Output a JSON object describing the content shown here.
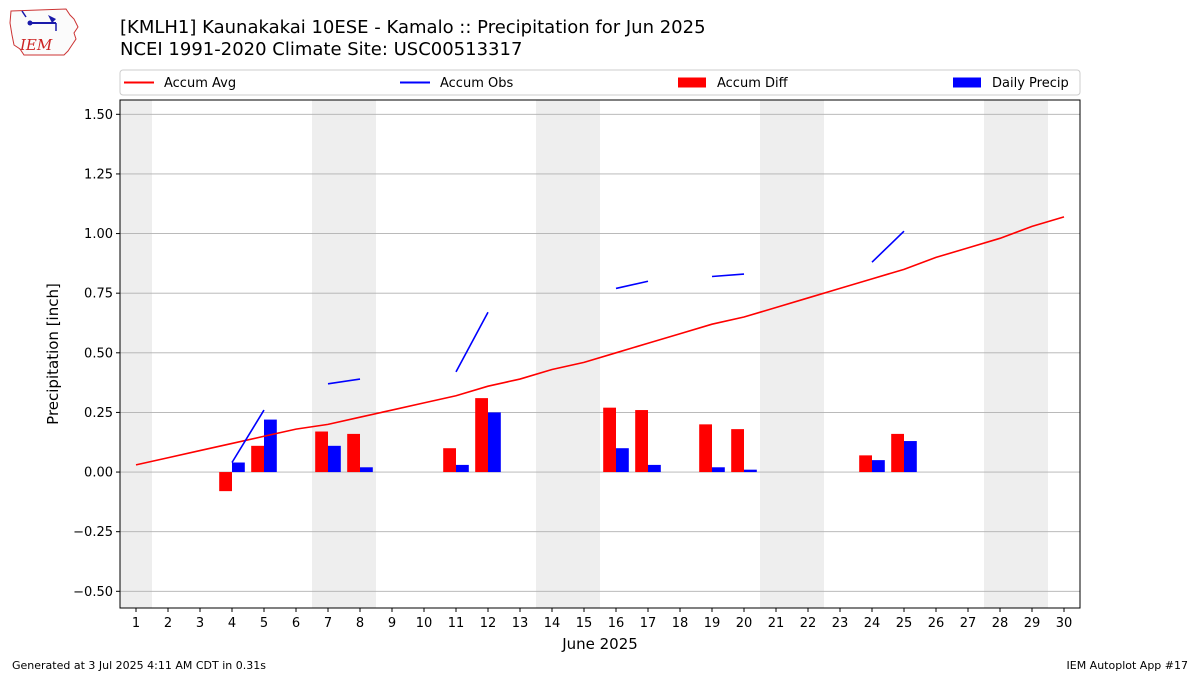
{
  "title": {
    "line1": "[KMLH1] Kaunakakai 10ESE - Kamalo :: Precipitation for Jun 2025",
    "line2": "NCEI 1991-2020 Climate Site: USC00513317"
  },
  "logo": {
    "text": "IEM",
    "color": "#cc2222"
  },
  "footer": {
    "left": "Generated at 3 Jul 2025 4:11 AM CDT in 0.31s",
    "right": "IEM Autoplot App #17"
  },
  "chart_data": {
    "type": "bar",
    "xlabel": "June 2025",
    "ylabel": "Precipitation [inch]",
    "xlim": [
      0.5,
      30.5
    ],
    "ylim": [
      -0.57,
      1.56
    ],
    "yticks": [
      -0.5,
      -0.25,
      0.0,
      0.25,
      0.5,
      0.75,
      1.0,
      1.25,
      1.5
    ],
    "ytick_labels": [
      "−0.50",
      "−0.25",
      "0.00",
      "0.25",
      "0.50",
      "0.75",
      "1.00",
      "1.25",
      "1.50"
    ],
    "days": [
      1,
      2,
      3,
      4,
      5,
      6,
      7,
      8,
      9,
      10,
      11,
      12,
      13,
      14,
      15,
      16,
      17,
      18,
      19,
      20,
      21,
      22,
      23,
      24,
      25,
      26,
      27,
      28,
      29,
      30
    ],
    "weekend_days": [
      1,
      7,
      8,
      14,
      15,
      21,
      22,
      28,
      29
    ],
    "grid": "horizontal",
    "legend_position": "top",
    "legend": [
      {
        "label": "Accum Avg",
        "kind": "line",
        "color": "#ff0000"
      },
      {
        "label": "Accum Obs",
        "kind": "line",
        "color": "#0000ff"
      },
      {
        "label": "Accum Diff",
        "kind": "bar",
        "color": "#ff0000"
      },
      {
        "label": "Daily Precip",
        "kind": "bar",
        "color": "#0000ff"
      }
    ],
    "accum_avg": [
      0.03,
      0.06,
      0.09,
      0.12,
      0.15,
      0.18,
      0.2,
      0.23,
      0.26,
      0.29,
      0.32,
      0.36,
      0.39,
      0.43,
      0.46,
      0.5,
      0.54,
      0.58,
      0.62,
      0.65,
      0.69,
      0.73,
      0.77,
      0.81,
      0.85,
      0.9,
      0.94,
      0.98,
      1.03,
      1.07
    ],
    "accum_obs_segments": [
      [
        [
          4,
          0.04
        ],
        [
          5,
          0.26
        ]
      ],
      [
        [
          7,
          0.37
        ],
        [
          8,
          0.39
        ]
      ],
      [
        [
          11,
          0.42
        ],
        [
          12,
          0.67
        ]
      ],
      [
        [
          16,
          0.77
        ],
        [
          17,
          0.8
        ]
      ],
      [
        [
          19,
          0.82
        ],
        [
          20,
          0.83
        ]
      ],
      [
        [
          24,
          0.88
        ],
        [
          25,
          1.01
        ]
      ]
    ],
    "accum_diff": [
      {
        "day": 4,
        "value": -0.08
      },
      {
        "day": 5,
        "value": 0.11
      },
      {
        "day": 7,
        "value": 0.17
      },
      {
        "day": 8,
        "value": 0.16
      },
      {
        "day": 11,
        "value": 0.1
      },
      {
        "day": 12,
        "value": 0.31
      },
      {
        "day": 16,
        "value": 0.27
      },
      {
        "day": 17,
        "value": 0.26
      },
      {
        "day": 19,
        "value": 0.2
      },
      {
        "day": 20,
        "value": 0.18
      },
      {
        "day": 24,
        "value": 0.07
      },
      {
        "day": 25,
        "value": 0.16
      }
    ],
    "daily_precip": [
      {
        "day": 4,
        "value": 0.04
      },
      {
        "day": 5,
        "value": 0.22
      },
      {
        "day": 7,
        "value": 0.11
      },
      {
        "day": 8,
        "value": 0.02
      },
      {
        "day": 11,
        "value": 0.03
      },
      {
        "day": 12,
        "value": 0.25
      },
      {
        "day": 16,
        "value": 0.1
      },
      {
        "day": 17,
        "value": 0.03
      },
      {
        "day": 19,
        "value": 0.02
      },
      {
        "day": 20,
        "value": 0.01
      },
      {
        "day": 24,
        "value": 0.05
      },
      {
        "day": 25,
        "value": 0.13
      }
    ]
  }
}
